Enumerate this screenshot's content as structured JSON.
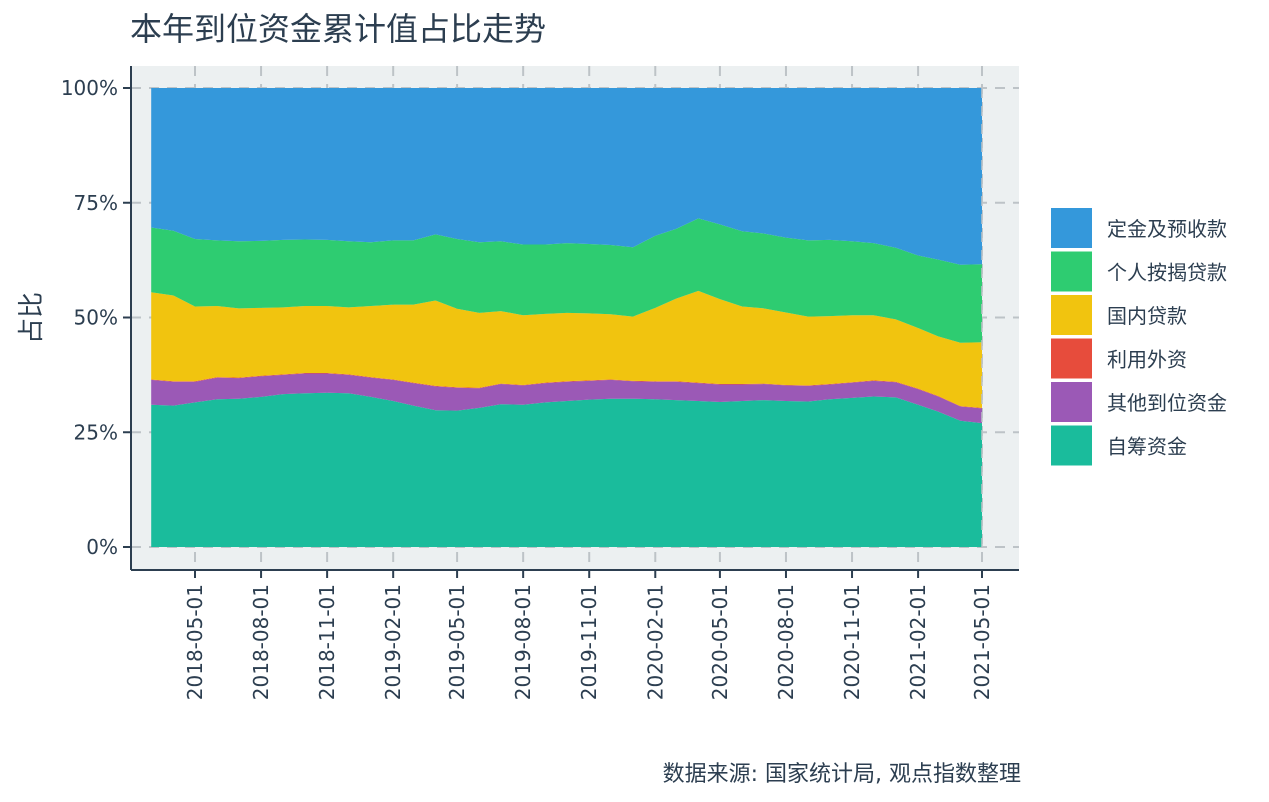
{
  "chart_data": {
    "type": "area",
    "stacked": "percent",
    "title": "本年到位资金累计值占比走势",
    "ylabel": "占比",
    "xlabel": "",
    "caption": "数据来源: 国家统计局, 观点指数整理",
    "ylim": [
      0,
      100
    ],
    "yticks": [
      "0%",
      "25%",
      "50%",
      "75%",
      "100%"
    ],
    "ytick_values": [
      0,
      25,
      50,
      75,
      100
    ],
    "xticks": [
      "2018-05-01",
      "2018-08-01",
      "2018-11-01",
      "2019-02-01",
      "2019-05-01",
      "2019-08-01",
      "2019-11-01",
      "2020-02-01",
      "2020-05-01",
      "2020-08-01",
      "2020-11-01",
      "2021-02-01",
      "2021-05-01"
    ],
    "x": [
      "2018-03-01",
      "2018-04-01",
      "2018-05-01",
      "2018-06-01",
      "2018-07-01",
      "2018-08-01",
      "2018-09-01",
      "2018-10-01",
      "2018-11-01",
      "2018-12-01",
      "2019-01-01",
      "2019-02-01",
      "2019-03-01",
      "2019-04-01",
      "2019-05-01",
      "2019-06-01",
      "2019-07-01",
      "2019-08-01",
      "2019-09-01",
      "2019-10-01",
      "2019-11-01",
      "2019-12-01",
      "2020-01-01",
      "2020-02-01",
      "2020-03-01",
      "2020-04-01",
      "2020-05-01",
      "2020-06-01",
      "2020-07-01",
      "2020-08-01",
      "2020-09-01",
      "2020-10-01",
      "2020-11-01",
      "2020-12-01",
      "2021-01-01",
      "2021-02-01",
      "2021-03-01",
      "2021-04-01",
      "2021-05-01"
    ],
    "legend_position": "right",
    "grid": true,
    "series": [
      {
        "name": "自筹资金",
        "color": "#1abc9c",
        "values": [
          31,
          30.8,
          31.5,
          32.2,
          32.3,
          32.7,
          33.3,
          33.5,
          33.6,
          33.5,
          32.7,
          31.8,
          30.8,
          29.8,
          29.7,
          30.3,
          31.1,
          31.0,
          31.5,
          31.8,
          32.1,
          32.3,
          32.3,
          32.2,
          32.0,
          31.8,
          31.6,
          31.8,
          32.0,
          31.8,
          31.7,
          32.2,
          32.5,
          32.8,
          32.6,
          31.0,
          29.5,
          27.5,
          27.0
        ]
      },
      {
        "name": "其他到位资金",
        "color": "#9b59b6",
        "values": [
          5.4,
          5.2,
          4.5,
          4.7,
          4.5,
          4.5,
          4.2,
          4.3,
          4.2,
          4.0,
          4.2,
          4.6,
          4.9,
          5.2,
          5.0,
          4.3,
          4.4,
          4.2,
          4.2,
          4.2,
          4.1,
          4.1,
          3.8,
          3.8,
          4.0,
          3.9,
          3.8,
          3.6,
          3.5,
          3.4,
          3.4,
          3.2,
          3.3,
          3.4,
          3.3,
          3.4,
          3.3,
          3.1,
          3.2
        ]
      },
      {
        "name": "利用外资",
        "color": "#e74c3c",
        "values": [
          0.1,
          0.1,
          0.1,
          0.1,
          0.1,
          0.1,
          0.1,
          0.1,
          0.1,
          0.1,
          0.1,
          0.1,
          0.1,
          0.1,
          0.1,
          0.1,
          0.1,
          0.1,
          0.1,
          0.1,
          0.1,
          0.1,
          0.1,
          0.1,
          0.1,
          0.1,
          0.1,
          0.1,
          0.1,
          0.1,
          0.1,
          0.1,
          0.1,
          0.1,
          0.1,
          0.1,
          0.1,
          0.1,
          0.1
        ]
      },
      {
        "name": "国内贷款",
        "color": "#f1c40f",
        "values": [
          19,
          18.7,
          16.3,
          15.5,
          15.1,
          14.8,
          14.6,
          14.6,
          14.6,
          14.6,
          15.5,
          16.3,
          17.0,
          18.6,
          17.1,
          16.3,
          15.8,
          15.2,
          15.0,
          14.9,
          14.6,
          14.2,
          14.0,
          16.0,
          18.0,
          20.0,
          18.5,
          16.9,
          16.4,
          15.8,
          15.0,
          14.8,
          14.6,
          14.2,
          13.6,
          13.2,
          13.0,
          13.8,
          14.3
        ]
      },
      {
        "name": "个人按揭贷款",
        "color": "#2ecc71",
        "values": [
          14.1,
          14.1,
          14.7,
          14.3,
          14.6,
          14.6,
          14.7,
          14.5,
          14.4,
          14.4,
          13.9,
          14.0,
          14.0,
          14.4,
          15.2,
          15.4,
          15.2,
          15.4,
          15.1,
          15.2,
          15.1,
          15.1,
          15.1,
          15.7,
          15.2,
          15.8,
          16.3,
          16.4,
          16.3,
          16.3,
          16.6,
          16.6,
          16.1,
          15.7,
          15.6,
          15.8,
          16.7,
          17.0,
          17.0
        ]
      },
      {
        "name": "定金及预收款",
        "color": "#3498db",
        "values": [
          30.4,
          31.1,
          32.9,
          33.2,
          33.4,
          33.3,
          33.1,
          33.0,
          33.1,
          33.4,
          33.6,
          33.2,
          33.2,
          31.9,
          32.9,
          33.6,
          33.4,
          34.1,
          34.1,
          33.8,
          34.0,
          34.2,
          34.7,
          32.2,
          30.7,
          28.4,
          29.7,
          31.2,
          31.7,
          32.6,
          33.2,
          33.1,
          33.4,
          33.8,
          34.8,
          36.5,
          37.4,
          38.5,
          38.4
        ]
      }
    ],
    "legend_order": [
      "定金及预收款",
      "个人按揭贷款",
      "国内贷款",
      "利用外资",
      "其他到位资金",
      "自筹资金"
    ]
  }
}
